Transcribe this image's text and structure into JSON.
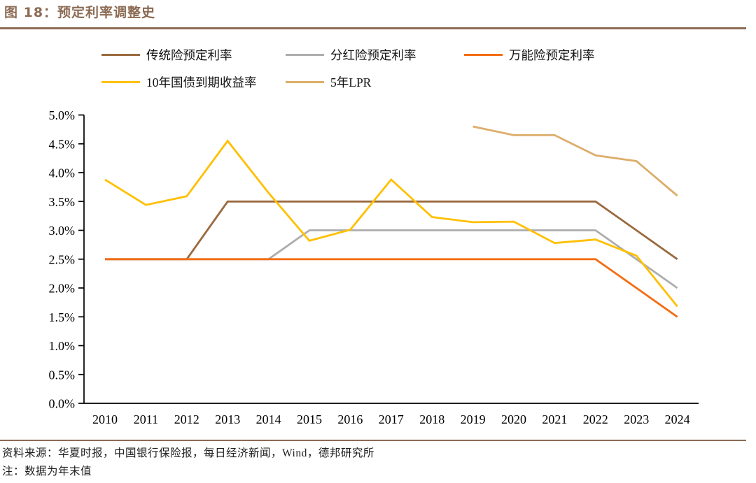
{
  "header": {
    "title": "图 18：预定利率调整史"
  },
  "legend": [
    {
      "label": "传统险预定利率",
      "color": "#9A6A3F"
    },
    {
      "label": "分红险预定利率",
      "color": "#ADADAD"
    },
    {
      "label": "万能险预定利率",
      "color": "#F36D13"
    },
    {
      "label": "10年国债到期收益率",
      "color": "#FFC000"
    },
    {
      "label": "5年LPR",
      "color": "#DCAE6B"
    }
  ],
  "chart_data": {
    "type": "line",
    "title": "预定利率调整史",
    "categories": [
      "2010",
      "2011",
      "2012",
      "2013",
      "2014",
      "2015",
      "2016",
      "2017",
      "2018",
      "2019",
      "2020",
      "2021",
      "2022",
      "2023",
      "2024"
    ],
    "series": [
      {
        "name": "传统险预定利率",
        "color": "#9A6A3F",
        "values": [
          2.5,
          2.5,
          2.5,
          3.5,
          3.5,
          3.5,
          3.5,
          3.5,
          3.5,
          3.5,
          3.5,
          3.5,
          3.5,
          3.0,
          2.5
        ]
      },
      {
        "name": "分红险预定利率",
        "color": "#ADADAD",
        "values": [
          2.5,
          2.5,
          2.5,
          2.5,
          2.5,
          3.0,
          3.0,
          3.0,
          3.0,
          3.0,
          3.0,
          3.0,
          3.0,
          2.5,
          2.0
        ]
      },
      {
        "name": "万能险预定利率",
        "color": "#F36D13",
        "values": [
          2.5,
          2.5,
          2.5,
          2.5,
          2.5,
          2.5,
          2.5,
          2.5,
          2.5,
          2.5,
          2.5,
          2.5,
          2.5,
          2.0,
          1.5
        ]
      },
      {
        "name": "10年国债到期收益率",
        "color": "#FFC000",
        "values": [
          3.88,
          3.44,
          3.59,
          4.55,
          3.65,
          2.82,
          3.01,
          3.88,
          3.23,
          3.14,
          3.15,
          2.78,
          2.84,
          2.56,
          1.68
        ]
      },
      {
        "name": "5年LPR",
        "color": "#DCAE6B",
        "values": [
          null,
          null,
          null,
          null,
          null,
          null,
          null,
          null,
          null,
          4.8,
          4.65,
          4.65,
          4.3,
          4.2,
          3.6
        ]
      }
    ],
    "xlabel": "",
    "ylabel": "",
    "ylim": [
      0,
      5
    ],
    "ytick_step": 0.5,
    "ytick_format": "0.0%",
    "grid": false,
    "legend_position": "top"
  },
  "footer": {
    "source": "资料来源：华夏时报，中国银行保险报，每日经济新闻，Wind，德邦研究所",
    "note": "注：数据为年末值"
  }
}
